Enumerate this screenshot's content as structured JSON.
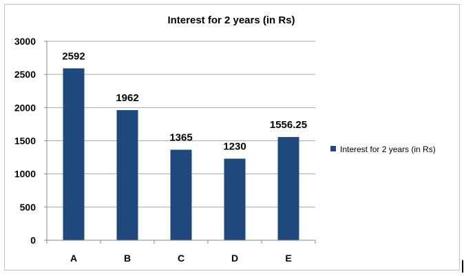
{
  "chart_data": {
    "type": "bar",
    "title": "Interest for 2 years (in Rs)",
    "categories": [
      "A",
      "B",
      "C",
      "D",
      "E"
    ],
    "series": [
      {
        "name": "Interest for 2 years (in Rs)",
        "values": [
          2592,
          1962,
          1365,
          1230,
          1556.25
        ]
      }
    ],
    "data_labels": [
      "2592",
      "1962",
      "1365",
      "1230",
      "1556.25"
    ],
    "yticks": [
      "0",
      "500",
      "1000",
      "1500",
      "2000",
      "2500",
      "3000"
    ],
    "ylim": [
      0,
      3000
    ],
    "grid": true,
    "legend_position": "right",
    "colors": {
      "bar": "#1F497D",
      "grid": "#a6a6a6",
      "axis": "#868686"
    }
  }
}
